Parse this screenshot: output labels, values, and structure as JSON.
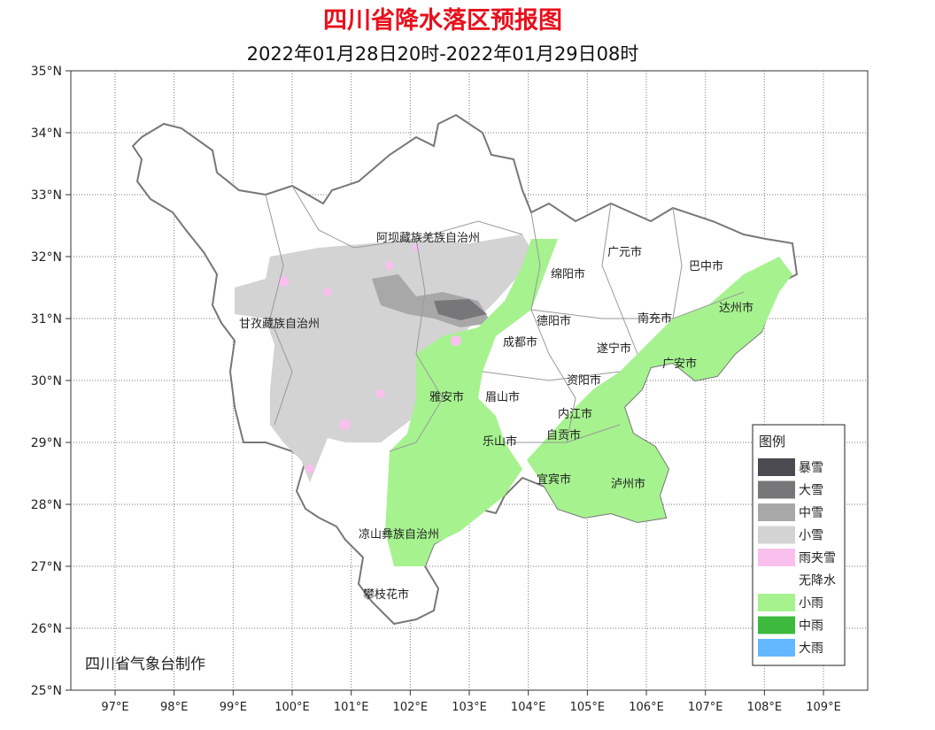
{
  "title": "四川省降水落区预报图",
  "subtitle": "2022年01月28日20时-2022年01月29日08时",
  "map": {
    "lat_labels": [
      "35°N",
      "34°N",
      "33°N",
      "32°N",
      "31°N",
      "30°N",
      "29°N",
      "28°N",
      "27°N",
      "26°N",
      "25°N"
    ],
    "lon_labels": [
      "97°E",
      "98°E",
      "99°E",
      "100°E",
      "101°E",
      "102°E",
      "103°E",
      "104°E",
      "105°E",
      "106°E",
      "107°E",
      "108°E",
      "109°E"
    ],
    "regions": [
      {
        "label": "阿坝藏族羌族自治州"
      },
      {
        "label": "甘孜藏族自治州"
      },
      {
        "label": "广元市"
      },
      {
        "label": "巴中市"
      },
      {
        "label": "绵阳市"
      },
      {
        "label": "德阳市"
      },
      {
        "label": "南充市"
      },
      {
        "label": "达州市"
      },
      {
        "label": "成都市"
      },
      {
        "label": "遂宁市"
      },
      {
        "label": "广安市"
      },
      {
        "label": "资阳市"
      },
      {
        "label": "雅安市"
      },
      {
        "label": "眉山市"
      },
      {
        "label": "内江市"
      },
      {
        "label": "乐山市"
      },
      {
        "label": "自贡市"
      },
      {
        "label": "宜宾市"
      },
      {
        "label": "泸州市"
      },
      {
        "label": "凉山彝族自治州"
      },
      {
        "label": "攀枝花市"
      }
    ]
  },
  "legend": {
    "title": "图例",
    "items": [
      {
        "label": "暴雪",
        "color": "#4a4a50"
      },
      {
        "label": "大雪",
        "color": "#777779"
      },
      {
        "label": "中雪",
        "color": "#a8a8a8"
      },
      {
        "label": "小雪",
        "color": "#d3d3d3"
      },
      {
        "label": "雨夹雪",
        "color": "#f9c0ee"
      },
      {
        "label": "无降水",
        "color": "#ffffff"
      },
      {
        "label": "小雨",
        "color": "#a6f28f"
      },
      {
        "label": "中雨",
        "color": "#3dba3d"
      },
      {
        "label": "大雨",
        "color": "#63b8ff"
      }
    ]
  },
  "credit": "四川省气象台制作"
}
